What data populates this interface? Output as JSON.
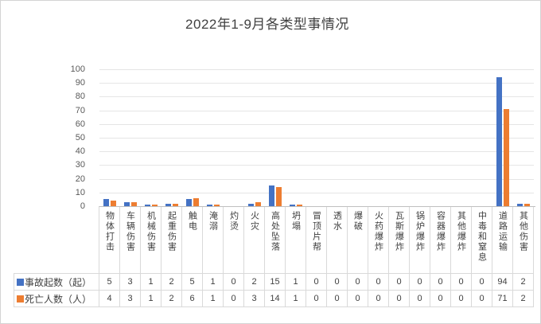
{
  "chart_data": {
    "type": "bar",
    "title": "2022年1-9月各类型事情况",
    "categories": [
      "物体打击",
      "车辆伤害",
      "机械伤害",
      "起重伤害",
      "触电",
      "淹溺",
      "灼烫",
      "火灾",
      "高处坠落",
      "坍塌",
      "冒顶片帮",
      "透水",
      "爆破",
      "火药爆炸",
      "瓦斯爆炸",
      "锅炉爆炸",
      "容器爆炸",
      "其他爆炸",
      "中毒和窒息",
      "道路运输",
      "其他伤害"
    ],
    "series": [
      {
        "name": "事故起数（起）",
        "color": "#4472C4",
        "values": [
          5,
          3,
          1,
          2,
          5,
          1,
          0,
          2,
          15,
          1,
          0,
          0,
          0,
          0,
          0,
          0,
          0,
          0,
          0,
          94,
          2
        ]
      },
      {
        "name": "死亡人数（人）",
        "color": "#ED7D31",
        "values": [
          4,
          3,
          1,
          2,
          6,
          1,
          0,
          3,
          14,
          1,
          0,
          0,
          0,
          0,
          0,
          0,
          0,
          0,
          0,
          71,
          2
        ]
      }
    ],
    "ylim": [
      0,
      100
    ],
    "yticks": [
      0,
      10,
      20,
      30,
      40,
      50,
      60,
      70,
      80,
      90,
      100
    ],
    "grid": true,
    "legend_position": "table-left",
    "data_table_shown": true
  },
  "colors": {
    "series1": "#4472C4",
    "series2": "#ED7D31",
    "gridline": "#e5e5e5",
    "axis_line": "#c0c0c0",
    "table_border": "#d9d9d9",
    "text": "#404040"
  }
}
